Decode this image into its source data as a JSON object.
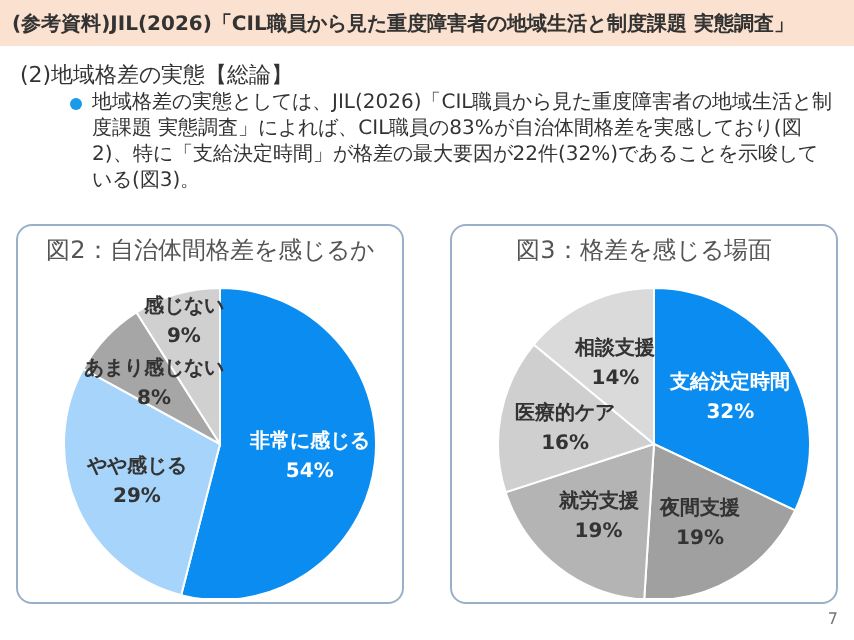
{
  "chart_data": [
    {
      "type": "pie",
      "title": "図2：自治体間格差を感じるか",
      "categories": [
        "非常に感じる",
        "やや感じる",
        "あまり感じない",
        "感じない"
      ],
      "values": [
        54,
        29,
        8,
        9
      ],
      "colors": [
        "#0a8cf0",
        "#a6d4fa",
        "#a6a6a6",
        "#d0d0d0"
      ],
      "value_labels": [
        "54%",
        "29%",
        "8%",
        "9%"
      ],
      "legend": false,
      "annotations": [
        "(参考資料)JIL(2026)「CIL職員から見た重度障害者の地域生活と制度課題 実態調査」",
        "(2)地域格差の実態【総論】",
        "地域格差の実態としては、JIL(2026)「CIL職員から見た重度障害者の地域生活と制度課題 実態調査」によれば、CIL職員の83%が自治体間格差を実感しており(図2)、特に「支給決定時間」が格差の最大要因が22件(32%)であることを示唆している(図3)。"
      ]
    },
    {
      "type": "pie",
      "title": "図3：格差を感じる場面",
      "categories": [
        "支給決定時間",
        "夜間支援",
        "就労支援",
        "医療的ケア",
        "相談支援"
      ],
      "values": [
        32,
        19,
        19,
        16,
        14
      ],
      "colors": [
        "#0a8cf0",
        "#a0a0a0",
        "#b4b4b4",
        "#cfcfcf",
        "#dadada"
      ],
      "value_labels": [
        "32%",
        "19%",
        "19%",
        "16%",
        "14%"
      ],
      "legend": false,
      "annotations": [
        "7"
      ]
    }
  ]
}
